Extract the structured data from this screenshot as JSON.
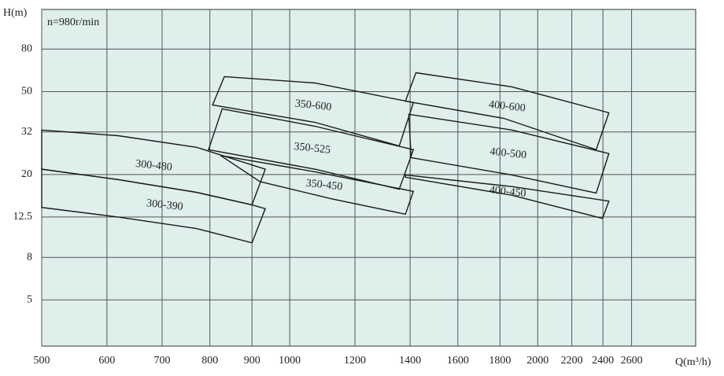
{
  "chart_data": {
    "type": "region",
    "annotation": "n=980r/min",
    "y_label": "H(m)",
    "x_label": "Q(m³/h)",
    "xscale": "log",
    "yscale": "log",
    "grid": true,
    "color": "#1a1a1a",
    "background": "#deefec",
    "xlim": [
      500,
      3110
    ],
    "ylim": [
      3,
      124
    ],
    "xticks": [
      500,
      600,
      700,
      800,
      900,
      1000,
      1200,
      1400,
      1600,
      1800,
      2000,
      2200,
      2400,
      2600
    ],
    "yticks": [
      5,
      8,
      12.5,
      20,
      32,
      50,
      80
    ],
    "series": [
      {
        "name": "300-480",
        "x": [
          500,
          619,
          771,
          934,
          900,
          771,
          619,
          500
        ],
        "values": [
          32.7,
          30.7,
          27.0,
          21.2,
          14.3,
          16.4,
          18.9,
          21.2
        ]
      },
      {
        "name": "300-390",
        "x": [
          500,
          619,
          771,
          900,
          934,
          900,
          771,
          619,
          500
        ],
        "values": [
          21.2,
          18.9,
          16.4,
          14.3,
          13.7,
          9.4,
          11.0,
          12.5,
          13.9
        ]
      },
      {
        "name": "350-600",
        "x": [
          833,
          1073,
          1413,
          1358,
          1073,
          806
        ],
        "values": [
          59.0,
          55.0,
          44.3,
          27.4,
          35.6,
          43.1
        ]
      },
      {
        "name": "350-525",
        "x": [
          828,
          1073,
          1413,
          1358,
          1073,
          797
        ],
        "values": [
          41.3,
          34.1,
          26.3,
          17.0,
          21.2,
          26.3
        ]
      },
      {
        "name": "350-450",
        "x": [
          824,
          1073,
          1413,
          1382,
          1122,
          920
        ],
        "values": [
          24.7,
          20.6,
          16.6,
          12.9,
          15.3,
          18.5
        ]
      },
      {
        "name": "400-600",
        "x": [
          1423,
          1861,
          2440,
          2355,
          1820,
          1382
        ],
        "values": [
          61.6,
          52.7,
          39.6,
          26.3,
          37.2,
          45.0
        ]
      },
      {
        "name": "400-500",
        "x": [
          1395,
          1861,
          2440,
          2355,
          1861,
          1404
        ],
        "values": [
          38.9,
          32.7,
          25.2,
          16.3,
          19.9,
          24.1
        ]
      },
      {
        "name": "400-450",
        "x": [
          1382,
          1861,
          2440,
          2397,
          1861,
          1382
        ],
        "values": [
          19.9,
          17.5,
          14.9,
          12.3,
          15.9,
          19.4
        ]
      }
    ]
  }
}
